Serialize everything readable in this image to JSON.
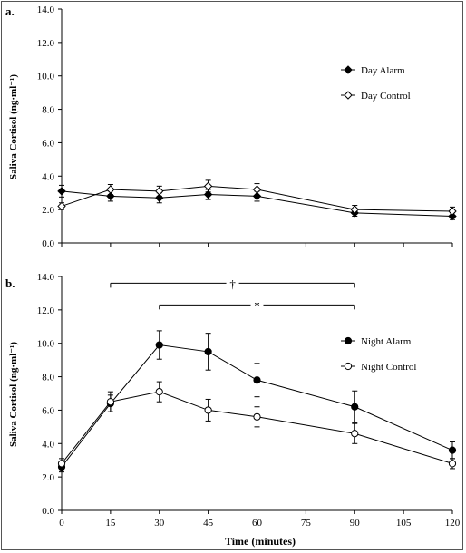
{
  "xlabel": "Time (minutes)",
  "chart_data": [
    {
      "type": "line",
      "panel_label": "a.",
      "ylabel": "Saliva Cortisol (ng·ml⁻¹)",
      "ylim": [
        0,
        14
      ],
      "y_ticks": [
        "0.0",
        "2.0",
        "4.0",
        "6.0",
        "8.0",
        "10.0",
        "12.0",
        "14.0"
      ],
      "x": [
        0,
        15,
        30,
        45,
        60,
        90,
        120
      ],
      "series": [
        {
          "name": "Day Alarm",
          "marker": "filled-diamond",
          "values": [
            3.1,
            2.8,
            2.7,
            2.9,
            2.8,
            1.8,
            1.6
          ],
          "errors": [
            0.35,
            0.3,
            0.3,
            0.3,
            0.3,
            0.2,
            0.2
          ]
        },
        {
          "name": "Day Control",
          "marker": "open-diamond",
          "values": [
            2.2,
            3.2,
            3.1,
            3.4,
            3.2,
            2.0,
            1.9
          ],
          "errors": [
            0.2,
            0.3,
            0.3,
            0.35,
            0.35,
            0.25,
            0.25
          ]
        }
      ],
      "legend_position": "right"
    },
    {
      "type": "line",
      "panel_label": "b.",
      "ylabel": "Saliva Cortisol (ng·ml⁻¹)",
      "ylim": [
        0,
        14
      ],
      "y_ticks": [
        "0.0",
        "2.0",
        "4.0",
        "6.0",
        "8.0",
        "10.0",
        "12.0",
        "14.0"
      ],
      "x": [
        0,
        15,
        30,
        45,
        60,
        90,
        120
      ],
      "x_ticks": [
        "0",
        "15",
        "30",
        "45",
        "60",
        "75",
        "90",
        "105",
        "120"
      ],
      "series": [
        {
          "name": "Night Alarm",
          "marker": "filled-circle",
          "values": [
            2.6,
            6.4,
            9.9,
            9.5,
            7.8,
            6.2,
            3.6
          ],
          "errors": [
            0.3,
            0.5,
            0.85,
            1.1,
            1.0,
            0.95,
            0.5
          ]
        },
        {
          "name": "Night Control",
          "marker": "open-circle",
          "values": [
            2.8,
            6.5,
            7.1,
            6.0,
            5.6,
            4.6,
            2.8
          ],
          "errors": [
            0.3,
            0.6,
            0.6,
            0.65,
            0.6,
            0.6,
            0.3
          ]
        }
      ],
      "annotations": [
        {
          "symbol": "†",
          "x_from": 15,
          "x_to": 90,
          "y": 13.6
        },
        {
          "symbol": "*",
          "x_from": 30,
          "x_to": 90,
          "y": 12.3
        }
      ],
      "legend_position": "right"
    }
  ]
}
